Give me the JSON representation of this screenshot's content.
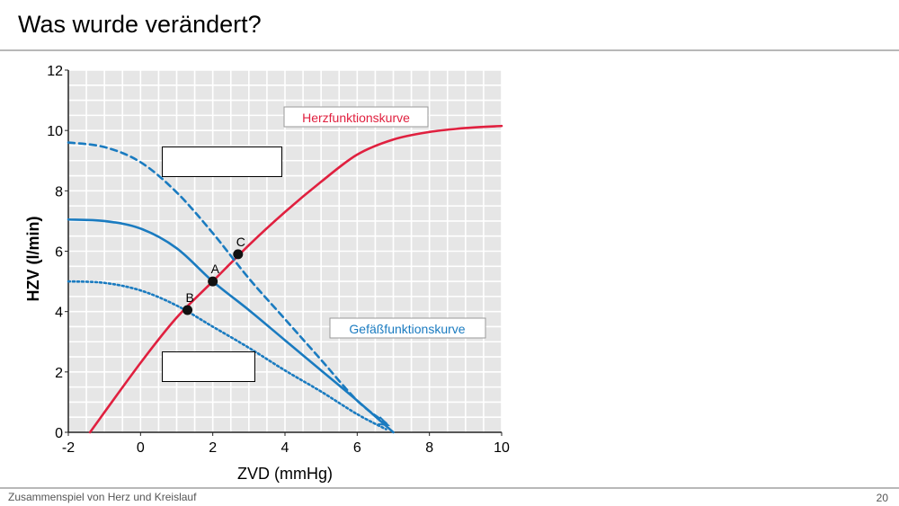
{
  "slide": {
    "title": "Was wurde verändert?",
    "footer": "Zusammenspiel von Herz und Kreislauf",
    "page_number": "20"
  },
  "colors": {
    "heart_curve": "#e0203f",
    "vascular_curve": "#1a7bc0",
    "grid_bg": "#e6e6e6",
    "grid_line": "#ffffff"
  },
  "chart_data": {
    "type": "line",
    "xlabel": "ZVD (mmHg)",
    "ylabel": "HZV (l/min)",
    "xlim": [
      -2,
      10
    ],
    "ylim": [
      0,
      12
    ],
    "xticks": [
      -2,
      0,
      2,
      4,
      6,
      8,
      10
    ],
    "yticks": [
      0,
      2,
      4,
      6,
      8,
      10,
      12
    ],
    "grid": true,
    "series": [
      {
        "name": "Herzfunktionskurve",
        "color": "#e0203f",
        "style": "solid",
        "x": [
          -1.4,
          0,
          1,
          2,
          3,
          4,
          5,
          6,
          7,
          8,
          9,
          10
        ],
        "y": [
          0,
          2.3,
          3.8,
          5.0,
          6.2,
          7.3,
          8.3,
          9.2,
          9.7,
          9.95,
          10.08,
          10.15
        ]
      },
      {
        "name": "",
        "color": "#1a7bc0",
        "style": "solid",
        "x": [
          -2,
          -1,
          0,
          1,
          2,
          3,
          4,
          5,
          6,
          7
        ],
        "y": [
          7.05,
          7.0,
          6.75,
          6.1,
          5.0,
          4.05,
          3.05,
          2.05,
          1.05,
          0
        ]
      },
      {
        "name": "",
        "color": "#1a7bc0",
        "style": "dashed",
        "x": [
          -2,
          -1,
          0,
          1,
          2,
          3,
          4,
          5,
          6,
          6.8
        ],
        "y": [
          9.6,
          9.45,
          8.95,
          7.95,
          6.6,
          5.1,
          3.75,
          2.4,
          1.05,
          0.3
        ]
      },
      {
        "name": "",
        "color": "#1a7bc0",
        "style": "dotted",
        "x": [
          -2,
          -1,
          0,
          1,
          2,
          3,
          4,
          5,
          6,
          6.8
        ],
        "y": [
          5.0,
          4.95,
          4.7,
          4.2,
          3.5,
          2.8,
          2.05,
          1.35,
          0.6,
          0.1
        ]
      }
    ],
    "points": [
      {
        "label": "A",
        "x": 2.0,
        "y": 5.0
      },
      {
        "label": "B",
        "x": 1.3,
        "y": 4.05
      },
      {
        "label": "C",
        "x": 2.7,
        "y": 5.9
      }
    ],
    "annotations": [
      "Herzfunktionskurve",
      "Gefäßfunktionskurve"
    ]
  }
}
